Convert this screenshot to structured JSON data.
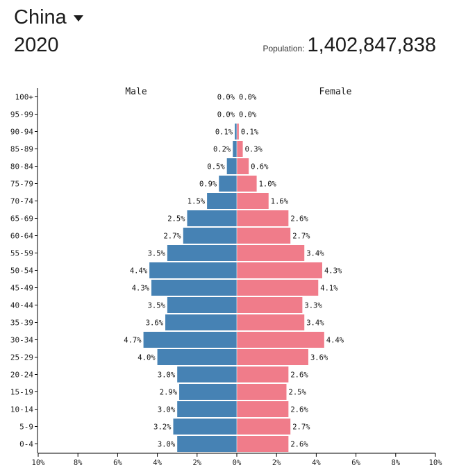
{
  "header": {
    "country": "China",
    "year": "2020",
    "population_label": "Population:",
    "population_value": "1,402,847,838"
  },
  "colors": {
    "male": "#4682b4",
    "female": "#f07c8a",
    "axis": "#000000",
    "text": "#1c1c1c"
  },
  "chart_data": {
    "type": "bar",
    "orientation": "horizontal",
    "subtype": "population-pyramid",
    "series_labels": {
      "male": "Male",
      "female": "Female"
    },
    "categories": [
      "100+",
      "95-99",
      "90-94",
      "85-89",
      "80-84",
      "75-79",
      "70-74",
      "65-69",
      "60-64",
      "55-59",
      "50-54",
      "45-49",
      "40-44",
      "35-39",
      "30-34",
      "25-29",
      "20-24",
      "15-19",
      "10-14",
      "5-9",
      "0-4"
    ],
    "series": [
      {
        "name": "Male",
        "values": [
          0.0,
          0.0,
          0.1,
          0.2,
          0.5,
          0.9,
          1.5,
          2.5,
          2.7,
          3.5,
          4.4,
          4.3,
          3.5,
          3.6,
          4.7,
          4.0,
          3.0,
          2.9,
          3.0,
          3.2,
          3.0
        ]
      },
      {
        "name": "Female",
        "values": [
          0.0,
          0.0,
          0.1,
          0.3,
          0.6,
          1.0,
          1.6,
          2.6,
          2.7,
          3.4,
          4.3,
          4.1,
          3.3,
          3.4,
          4.4,
          3.6,
          2.6,
          2.5,
          2.6,
          2.7,
          2.6
        ]
      }
    ],
    "x_ticks": [
      "10%",
      "8%",
      "6%",
      "4%",
      "2%",
      "0%",
      "2%",
      "4%",
      "6%",
      "8%",
      "10%"
    ],
    "xlim": [
      -10,
      10
    ],
    "unit": "%"
  }
}
